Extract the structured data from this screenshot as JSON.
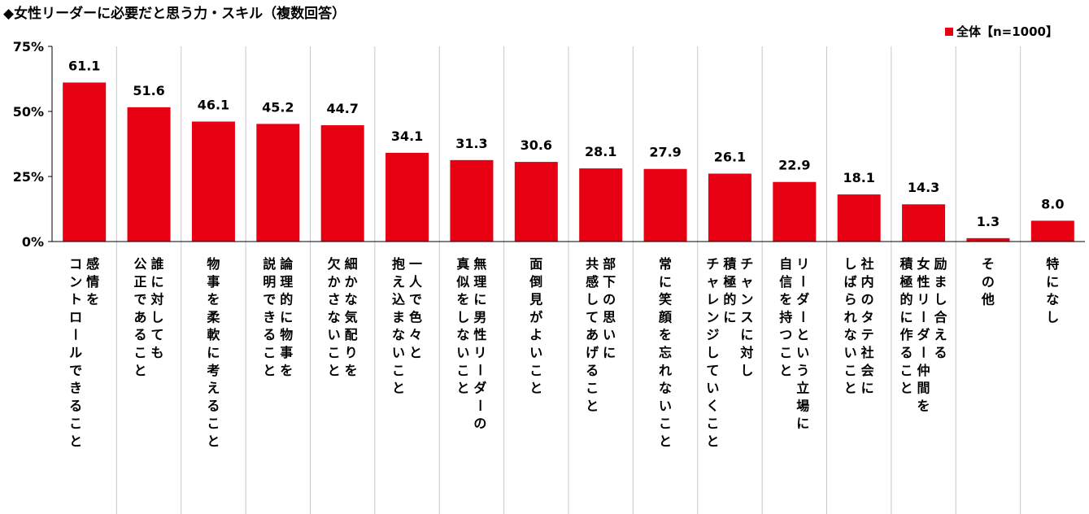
{
  "title": "◆女性リーダーに必要だと思う力・スキル（複数回答）",
  "legend": {
    "label": "全体【n=1000】",
    "color": "#e60012"
  },
  "chart_data": {
    "type": "bar",
    "title": "◆女性リーダーに必要だと思う力・スキル（複数回答）",
    "ylim": [
      0,
      75
    ],
    "yticks": [
      "0%",
      "25%",
      "50%",
      "75%"
    ],
    "ytick_values": [
      0,
      25,
      50,
      75
    ],
    "grid": false,
    "legend_position": "top-right",
    "series": [
      {
        "name": "全体【n=1000】",
        "color": "#e60012",
        "values": [
          61.1,
          51.6,
          46.1,
          45.2,
          44.7,
          34.1,
          31.3,
          30.6,
          28.1,
          27.9,
          26.1,
          22.9,
          18.1,
          14.3,
          1.3,
          8.0
        ],
        "value_labels": [
          "61.1",
          "51.6",
          "46.1",
          "45.2",
          "44.7",
          "34.1",
          "31.3",
          "30.6",
          "28.1",
          "27.9",
          "26.1",
          "22.9",
          "18.1",
          "14.3",
          "1.3",
          "8.0"
        ]
      }
    ],
    "categories": [
      [
        "感情を",
        "コントロールできること"
      ],
      [
        "誰に対しても",
        "公正であること"
      ],
      [
        "物事を柔軟に考えること"
      ],
      [
        "論理的に物事を",
        "説明できること"
      ],
      [
        "細かな気配りを",
        "欠かさないこと"
      ],
      [
        "一人で色々と",
        "抱え込まないこと"
      ],
      [
        "無理に男性リーダーの",
        "真似をしないこと"
      ],
      [
        "面倒見がよいこと"
      ],
      [
        "部下の思いに",
        "共感してあげること"
      ],
      [
        "常に笑顔を忘れないこと"
      ],
      [
        "チャンスに対し",
        "積極的に",
        "チャレンジしていくこと"
      ],
      [
        "リーダーという立場に",
        "自信を持つこと"
      ],
      [
        "社内のタテ社会に",
        "しばられないこと"
      ],
      [
        "励まし合える",
        "女性リーダー仲間を",
        "積極的に作ること"
      ],
      [
        "その他"
      ],
      [
        "特になし"
      ]
    ]
  }
}
